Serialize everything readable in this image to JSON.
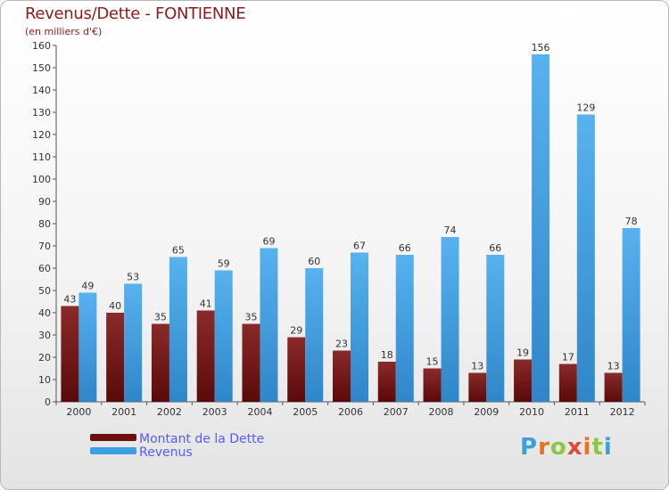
{
  "title": "Revenus/Dette - FONTIENNE",
  "subtitle": "(en milliers d'€)",
  "chart_data": {
    "type": "bar",
    "categories": [
      "2000",
      "2001",
      "2002",
      "2003",
      "2004",
      "2005",
      "2006",
      "2007",
      "2008",
      "2009",
      "2010",
      "2011",
      "2012"
    ],
    "series": [
      {
        "name": "Montant de la Dette",
        "values": [
          43,
          40,
          35,
          41,
          35,
          29,
          23,
          18,
          15,
          13,
          19,
          17,
          13
        ],
        "color": "#7a1a1a"
      },
      {
        "name": "Revenus",
        "values": [
          49,
          53,
          65,
          59,
          69,
          60,
          67,
          66,
          74,
          66,
          156,
          129,
          78
        ],
        "color": "#3f9ee0"
      }
    ],
    "ylim": [
      0,
      160
    ],
    "yticks": [
      0,
      10,
      20,
      30,
      40,
      50,
      60,
      70,
      80,
      90,
      100,
      110,
      120,
      130,
      140,
      150,
      160
    ],
    "grid": false,
    "legend": "bottom-left"
  },
  "legend": {
    "items": [
      {
        "label": "Montant de la Dette",
        "color": "#6b0f0f"
      },
      {
        "label": "Revenus",
        "color": "#3f9ee0"
      }
    ]
  },
  "logo": {
    "letters": [
      "P",
      "r",
      "o",
      "x",
      "i",
      "t",
      "i"
    ],
    "colors": [
      "#3aa0dc",
      "#e8731c",
      "#8cc83c",
      "#d94b3c",
      "#e8731c",
      "#8cc83c",
      "#3aa0dc"
    ]
  }
}
